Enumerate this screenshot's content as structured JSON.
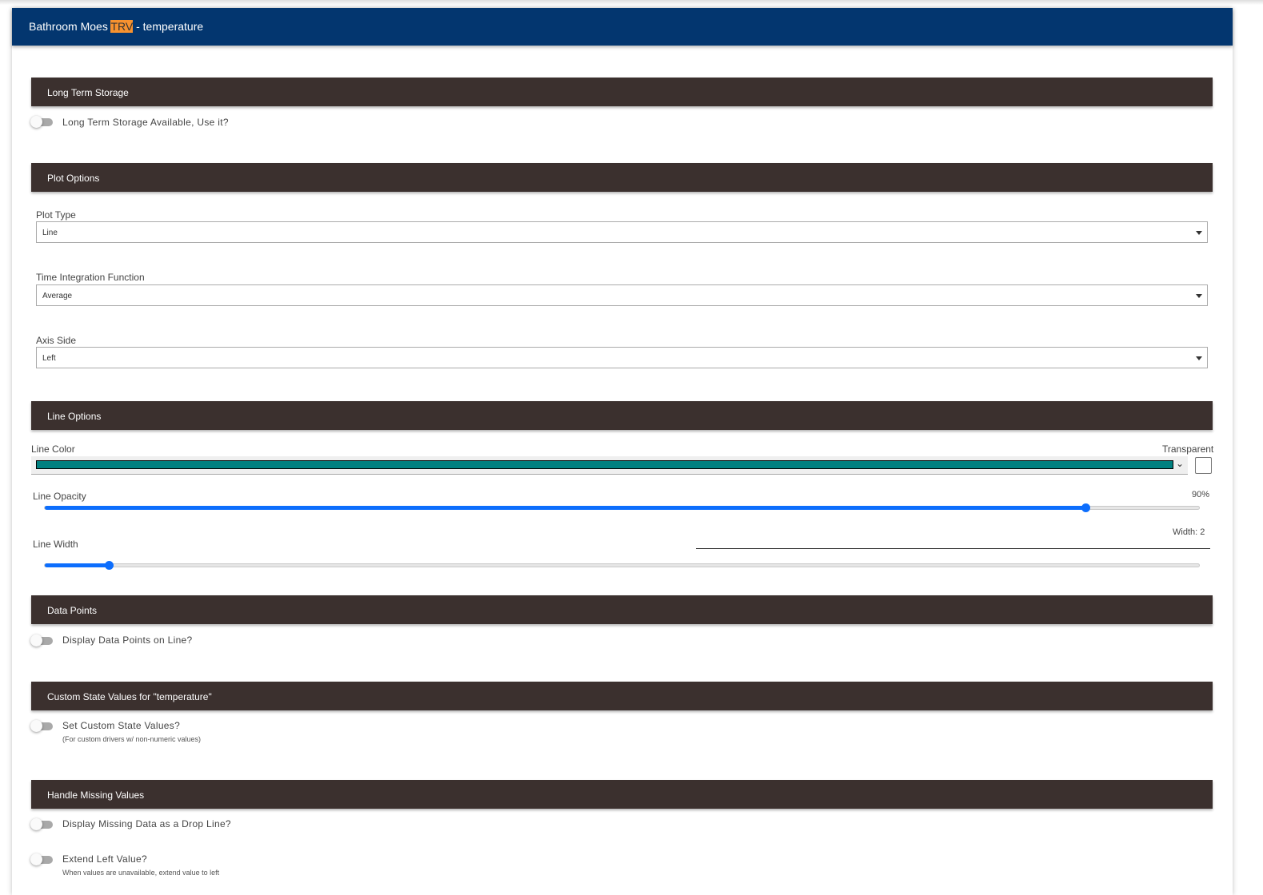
{
  "header": {
    "title_pre": "Bathroom Moes ",
    "title_hl": "TRV",
    "title_post": " - temperature"
  },
  "sections": {
    "long_term": {
      "title": "Long Term Storage",
      "toggle_label": "Long Term Storage Available, Use it?",
      "enabled": false
    },
    "plot": {
      "title": "Plot Options",
      "plot_type_label": "Plot Type",
      "plot_type": "Line",
      "tif_label": "Time Integration Function",
      "tif": "Average",
      "axis_label": "Axis Side",
      "axis": "Left"
    },
    "line": {
      "title": "Line Options",
      "color_label": "Line Color",
      "color": "#008080",
      "transparent_label": "Transparent",
      "opacity_label": "Line Opacity",
      "opacity_text": "90%",
      "opacity": 0.9,
      "width_label": "Line Width",
      "width_text": "Width: 2",
      "width": 2
    },
    "points": {
      "title": "Data Points",
      "toggle_label": "Display Data Points on Line?",
      "enabled": false
    },
    "custom": {
      "title": "Custom State Values for \"temperature\"",
      "toggle_label": "Set Custom State Values?",
      "sub": "(For custom drivers w/ non-numeric values)",
      "enabled": false
    },
    "missing": {
      "title": "Handle Missing Values",
      "drop_label": "Display Missing Data as a Drop Line?",
      "extend_label": "Extend Left Value?",
      "extend_sub": "When values are unavailable, extend value to left"
    }
  },
  "colors": {
    "header": "#03366f",
    "section": "#3b302e",
    "accent": "#0d6efd",
    "highlight": "#f7922f"
  }
}
